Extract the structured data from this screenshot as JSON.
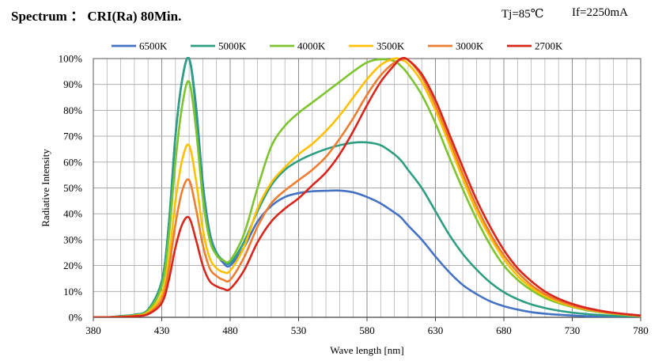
{
  "header": {
    "title": "Spectrum ： CRI(Ra) 80Min.",
    "tj": "Tj=85℃",
    "if": "If=2250mA"
  },
  "chart_data": {
    "type": "line",
    "title": "Spectrum ： CRI(Ra) 80Min.",
    "xlabel": "Wave length [nm]",
    "ylabel": "Radiative Intensity",
    "xlim": [
      380,
      780
    ],
    "ylim": [
      0,
      100
    ],
    "xticks": [
      380,
      430,
      480,
      530,
      580,
      630,
      680,
      730,
      780
    ],
    "yticks": [
      0,
      10,
      20,
      30,
      40,
      50,
      60,
      70,
      80,
      90,
      100
    ],
    "ytick_suffix": "%",
    "grid": true,
    "legend_position": "top",
    "x": [
      380,
      390,
      400,
      410,
      420,
      430,
      435,
      440,
      445,
      450,
      455,
      460,
      465,
      470,
      475,
      480,
      490,
      500,
      510,
      520,
      530,
      540,
      550,
      560,
      570,
      580,
      590,
      600,
      605,
      610,
      620,
      630,
      640,
      650,
      660,
      670,
      680,
      690,
      700,
      710,
      720,
      730,
      740,
      750,
      760,
      770,
      780
    ],
    "series": [
      {
        "name": "6500K",
        "color": "#4472C4",
        "values": [
          0,
          0,
          0.5,
          1,
          3,
          14,
          35,
          70,
          92,
          100,
          82,
          52,
          33,
          25,
          21,
          20,
          27,
          37,
          43,
          46.5,
          48,
          48.7,
          48.9,
          49,
          48.3,
          46.5,
          44,
          40.5,
          38.5,
          35.5,
          30,
          23.5,
          17.5,
          12.5,
          9,
          6.2,
          4.3,
          3,
          2,
          1.4,
          1,
          0.7,
          0.45,
          0.3,
          0.2,
          0.1,
          0
        ]
      },
      {
        "name": "5000K",
        "color": "#2E9E82",
        "values": [
          0,
          0,
          0.5,
          1,
          3,
          14,
          35,
          70,
          92,
          100,
          80,
          50,
          32,
          25,
          22,
          21,
          29,
          41,
          51,
          57,
          60.5,
          63,
          65,
          66.5,
          67.5,
          67.6,
          66.5,
          63,
          60.5,
          57,
          50,
          41,
          32,
          24.5,
          18.5,
          13.5,
          9.7,
          7,
          5,
          3.6,
          2.6,
          1.8,
          1.3,
          0.9,
          0.6,
          0.3,
          0.1
        ]
      },
      {
        "name": "4000K",
        "color": "#7DC42E",
        "values": [
          0,
          0,
          0.3,
          0.8,
          2.5,
          12,
          30,
          60,
          82,
          91,
          73,
          46,
          30,
          24,
          22,
          22,
          32,
          50,
          66,
          74,
          79,
          83,
          87,
          91,
          95,
          98.5,
          99.7,
          99,
          97,
          94,
          86,
          75,
          62,
          49.5,
          38,
          28,
          20,
          14.5,
          10.5,
          7.5,
          5.5,
          4,
          2.8,
          2,
          1.4,
          0.9,
          0.5
        ]
      },
      {
        "name": "3500K",
        "color": "#FFC000",
        "values": [
          0,
          0,
          0.2,
          0.6,
          2,
          9,
          22,
          45,
          61,
          66.5,
          53,
          34,
          23,
          19,
          17.5,
          18,
          27,
          42,
          52,
          58,
          63,
          67,
          72,
          78,
          85,
          92,
          97.5,
          100,
          99.5,
          98,
          91,
          80,
          67,
          53.5,
          41,
          31,
          22.5,
          16,
          11.5,
          8.3,
          6,
          4.3,
          3.1,
          2.2,
          1.5,
          1,
          0.5
        ]
      },
      {
        "name": "3000K",
        "color": "#ED7D31",
        "values": [
          0,
          0,
          0.2,
          0.5,
          1.5,
          7,
          18,
          36,
          49,
          53,
          42,
          28,
          19,
          16,
          14.5,
          14.5,
          23,
          35,
          44,
          49,
          53,
          57,
          62,
          69,
          77,
          86,
          93.5,
          98.5,
          99.5,
          99.5,
          93,
          82,
          69,
          55.5,
          43,
          32.5,
          24,
          17.5,
          12.5,
          9,
          6.5,
          4.6,
          3.3,
          2.3,
          1.6,
          1.1,
          0.6
        ]
      },
      {
        "name": "2700K",
        "color": "#D9261C",
        "values": [
          0,
          0,
          0.1,
          0.4,
          1.2,
          5.5,
          14,
          27,
          36,
          38.5,
          30,
          20,
          14,
          12,
          11,
          11,
          18,
          29,
          37,
          42,
          46,
          51,
          56,
          63,
          72,
          82,
          91,
          97.5,
          100,
          99.5,
          94,
          84,
          71,
          58,
          45.5,
          35,
          26,
          19,
          14,
          10,
          7.2,
          5.2,
          3.7,
          2.6,
          1.8,
          1.2,
          0.7
        ]
      }
    ]
  }
}
